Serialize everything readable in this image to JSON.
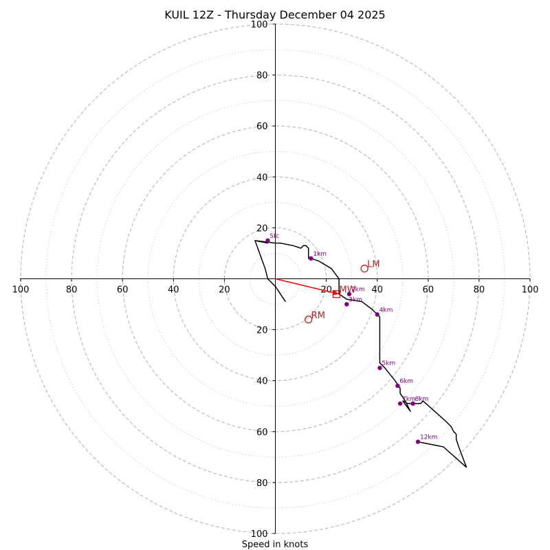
{
  "chart_data": {
    "type": "hodograph",
    "title": "KUIL 12Z - Thursday December 04 2025",
    "xlabel": "Speed in knots",
    "range": [
      -100,
      100
    ],
    "major_rings": [
      20,
      40,
      60,
      80,
      100
    ],
    "minor_rings": [
      10,
      30,
      50,
      70,
      90
    ],
    "x_tick_labels": [
      "100",
      "80",
      "60",
      "40",
      "20",
      "20",
      "40",
      "60",
      "80",
      "100"
    ],
    "y_tick_labels": [
      "100",
      "80",
      "60",
      "40",
      "20",
      "20",
      "40",
      "60",
      "80",
      "100"
    ],
    "x_tick_values": [
      -100,
      -80,
      -60,
      -40,
      -20,
      20,
      40,
      60,
      80,
      100
    ],
    "y_tick_values": [
      100,
      80,
      60,
      40,
      20,
      -20,
      -40,
      -60,
      -80,
      -100
    ],
    "colors": {
      "trace": "#000000",
      "markers": "#800080",
      "motion": "#b22222",
      "arrow": "#ff0000",
      "rings": "#bbbbbb"
    },
    "trace": [
      [
        4,
        -9
      ],
      [
        0,
        -3
      ],
      [
        -3,
        0
      ],
      [
        -4,
        4
      ],
      [
        -8,
        15
      ],
      [
        -3,
        14
      ],
      [
        -8,
        15
      ],
      [
        0,
        14
      ],
      [
        2,
        14
      ],
      [
        7,
        13
      ],
      [
        10,
        12
      ],
      [
        11,
        13
      ],
      [
        12,
        13
      ],
      [
        13,
        12
      ],
      [
        13,
        11
      ],
      [
        13,
        10
      ],
      [
        13,
        8
      ],
      [
        14,
        8
      ],
      [
        17,
        7
      ],
      [
        22,
        4
      ],
      [
        25,
        0
      ],
      [
        25,
        -6
      ],
      [
        28,
        -8
      ],
      [
        34,
        -9
      ],
      [
        38,
        -12
      ],
      [
        40,
        -14
      ],
      [
        41,
        -15
      ],
      [
        41,
        -23
      ],
      [
        41,
        -28
      ],
      [
        41,
        -33
      ],
      [
        43,
        -35
      ],
      [
        47,
        -40
      ],
      [
        49,
        -43
      ],
      [
        49,
        -45
      ],
      [
        51,
        -48
      ],
      [
        52,
        -50
      ],
      [
        53,
        -52
      ],
      [
        50,
        -48
      ],
      [
        52,
        -49
      ],
      [
        54,
        -49
      ],
      [
        57,
        -49
      ],
      [
        58,
        -48
      ],
      [
        67,
        -56
      ],
      [
        69,
        -58
      ],
      [
        70,
        -60
      ],
      [
        71,
        -61
      ],
      [
        71,
        -63
      ],
      [
        72,
        -66
      ],
      [
        75,
        -74
      ],
      [
        66,
        -66
      ],
      [
        56,
        -64
      ]
    ],
    "height_markers": [
      {
        "label": "Sfc",
        "u": -3,
        "v": 15
      },
      {
        "label": "1km",
        "u": 14,
        "v": 8
      },
      {
        "label": "2km",
        "u": 29,
        "v": -6
      },
      {
        "label": "3km",
        "u": 28,
        "v": -10
      },
      {
        "label": "4km",
        "u": 40,
        "v": -14
      },
      {
        "label": "5km",
        "u": 41,
        "v": -35
      },
      {
        "label": "6km",
        "u": 48,
        "v": -42
      },
      {
        "label": "7km",
        "u": 49,
        "v": -49
      },
      {
        "label": "8km",
        "u": 54,
        "v": -49
      },
      {
        "label": "12km",
        "u": 56,
        "v": -64
      }
    ],
    "storm_motion": [
      {
        "label": "LM",
        "u": 35,
        "v": 4,
        "marker": "circle"
      },
      {
        "label": "RM",
        "u": 13,
        "v": -16,
        "marker": "circle"
      },
      {
        "label": "MW",
        "u": 24,
        "v": -6,
        "marker": "square"
      }
    ],
    "shear_vector": {
      "from": [
        0,
        0
      ],
      "to": [
        25,
        -6
      ]
    }
  }
}
